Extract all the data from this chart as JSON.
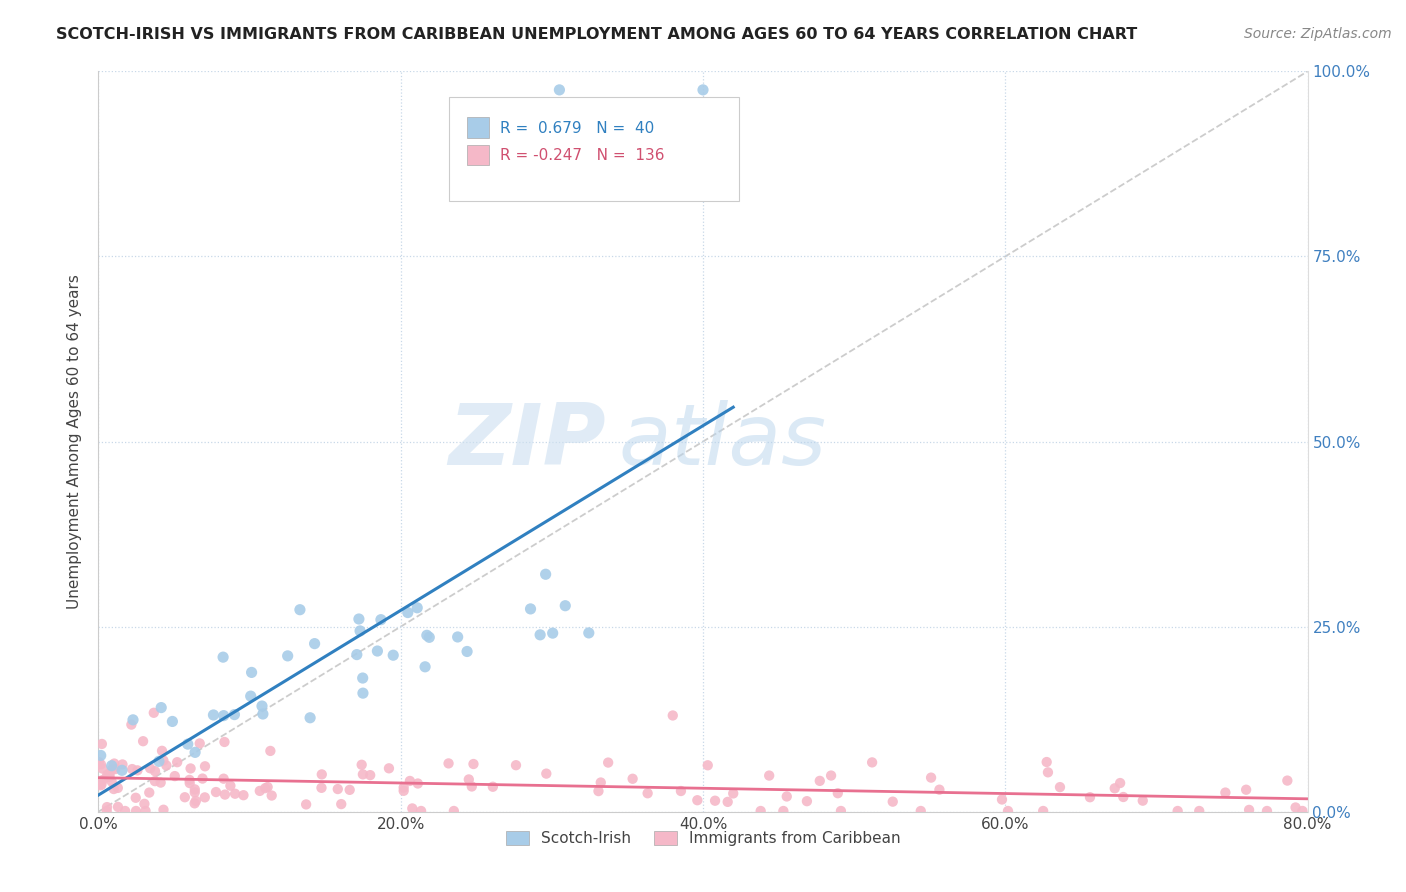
{
  "title": "SCOTCH-IRISH VS IMMIGRANTS FROM CARIBBEAN UNEMPLOYMENT AMONG AGES 60 TO 64 YEARS CORRELATION CHART",
  "source": "Source: ZipAtlas.com",
  "ylabel_left": "Unemployment Among Ages 60 to 64 years",
  "legend_label1": "Scotch-Irish",
  "legend_label2": "Immigrants from Caribbean",
  "legend_r1": "R =  0.679",
  "legend_n1": "N =  40",
  "legend_r2": "R = -0.247",
  "legend_n2": "N =  136",
  "color_blue": "#a8cce8",
  "color_pink": "#f5b8c8",
  "color_blue_line": "#3080c0",
  "color_pink_line": "#e87090",
  "color_diag": "#c0c0c0",
  "watermark_zip": "ZIP",
  "watermark_atlas": "atlas",
  "xmin": 0.0,
  "xmax": 0.8,
  "ymin": 0.0,
  "ymax": 1.0,
  "xticks": [
    0.0,
    0.2,
    0.4,
    0.6,
    0.8
  ],
  "yticks": [
    0.0,
    0.25,
    0.5,
    0.75,
    1.0
  ],
  "xtick_labels": [
    "0.0%",
    "20.0%",
    "40.0%",
    "60.0%",
    "80.0%"
  ],
  "ytick_labels": [
    "0.0%",
    "25.0%",
    "50.0%",
    "75.0%",
    "100.0%"
  ]
}
